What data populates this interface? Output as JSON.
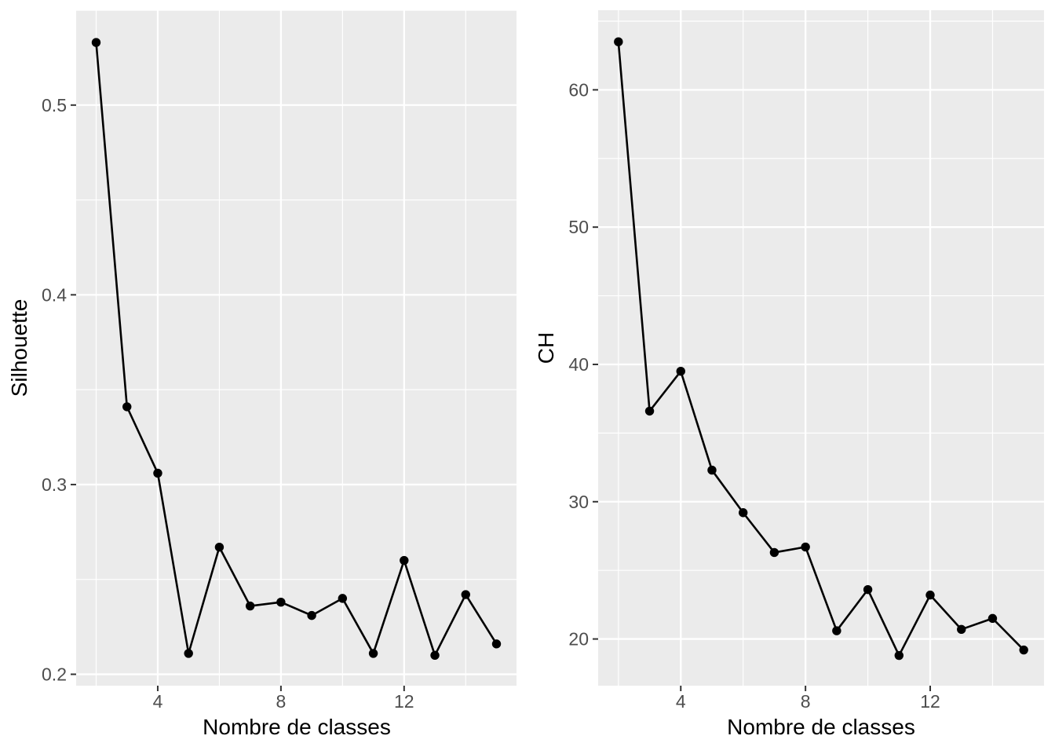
{
  "page": {
    "background": "#FFFFFF",
    "description": "Two side-by-side ggplot2-style scatter-line charts of clustering validation indices versus number of classes"
  },
  "colors": {
    "panel_background": "#EBEBEB",
    "gridline": "#FFFFFF",
    "series": "#000000",
    "tick_label": "#4D4D4D",
    "tick_mark": "#333333",
    "axis_title": "#000000"
  },
  "chart_data": [
    {
      "type": "line",
      "title": "",
      "xlabel": "Nombre de classes",
      "ylabel": "Silhouette",
      "legend": "none",
      "grid": true,
      "x": [
        2,
        3,
        4,
        5,
        6,
        7,
        8,
        9,
        10,
        11,
        12,
        13,
        14,
        15
      ],
      "y": [
        0.533,
        0.341,
        0.306,
        0.211,
        0.267,
        0.236,
        0.238,
        0.231,
        0.24,
        0.211,
        0.26,
        0.21,
        0.242,
        0.216
      ],
      "xlim": [
        1.35,
        15.65
      ],
      "ylim": [
        0.194,
        0.55
      ],
      "x_ticks": {
        "major": [
          4,
          8,
          12
        ],
        "minor": [
          2,
          6,
          10,
          14
        ],
        "labels": [
          "4",
          "8",
          "12"
        ]
      },
      "y_ticks": {
        "major": [
          0.2,
          0.3,
          0.4,
          0.5
        ],
        "minor": [
          0.25,
          0.35,
          0.45,
          0.55
        ],
        "labels": [
          "0.2",
          "0.3",
          "0.4",
          "0.5"
        ]
      }
    },
    {
      "type": "line",
      "title": "",
      "xlabel": "Nombre de classes",
      "ylabel": "CH",
      "legend": "none",
      "grid": true,
      "x": [
        2,
        3,
        4,
        5,
        6,
        7,
        8,
        9,
        10,
        11,
        12,
        13,
        14,
        15
      ],
      "y": [
        63.5,
        36.6,
        39.5,
        32.3,
        29.2,
        26.3,
        26.7,
        20.6,
        23.6,
        18.8,
        23.2,
        20.7,
        21.5,
        19.2
      ],
      "xlim": [
        1.35,
        15.65
      ],
      "ylim": [
        16.6,
        65.8
      ],
      "x_ticks": {
        "major": [
          4,
          8,
          12
        ],
        "minor": [
          2,
          6,
          10,
          14
        ],
        "labels": [
          "4",
          "8",
          "12"
        ]
      },
      "y_ticks": {
        "major": [
          20,
          30,
          40,
          50,
          60
        ],
        "minor": [
          25,
          35,
          45,
          55,
          65
        ],
        "labels": [
          "20",
          "30",
          "40",
          "50",
          "60"
        ]
      }
    }
  ]
}
